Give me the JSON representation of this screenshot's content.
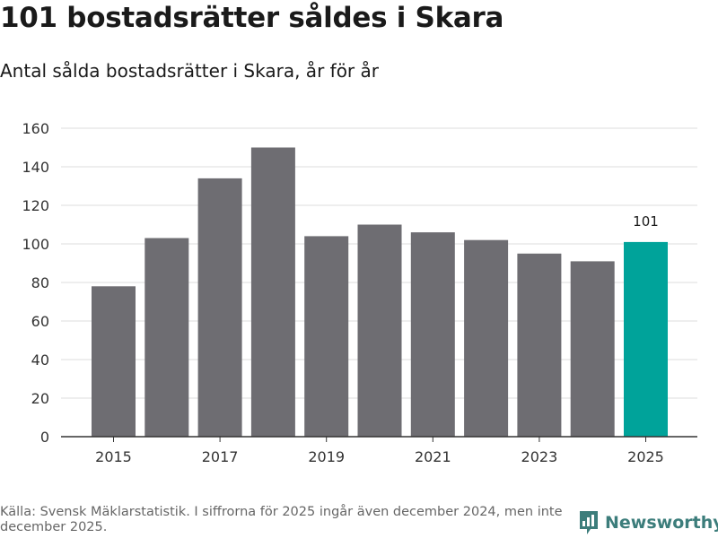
{
  "header": {
    "title": "101 bostadsrätter såldes i Skara",
    "subtitle": "Antal sålda bostadsrätter i Skara, år för år"
  },
  "chart_data": {
    "type": "bar",
    "title": "101 bostadsrätter såldes i Skara",
    "subtitle": "Antal sålda bostadsrätter i Skara, år för år",
    "xlabel": "",
    "ylabel": "",
    "categories": [
      "2015",
      "2016",
      "2017",
      "2018",
      "2019",
      "2020",
      "2021",
      "2022",
      "2023",
      "2024",
      "2025"
    ],
    "x_tick_labels": [
      "2015",
      "2017",
      "2019",
      "2021",
      "2023",
      "2025"
    ],
    "values": [
      78,
      103,
      134,
      150,
      104,
      110,
      106,
      102,
      95,
      91,
      101
    ],
    "ylim": [
      0,
      160
    ],
    "y_ticks": [
      0,
      20,
      40,
      60,
      80,
      100,
      120,
      140,
      160
    ],
    "grid": true,
    "highlight_index": 10,
    "data_labels": [
      {
        "index": 10,
        "text": "101"
      }
    ],
    "colors": {
      "bar": "#6e6d72",
      "highlight": "#00a39a",
      "grid": "#dddddd",
      "axis": "#333333"
    }
  },
  "footer": {
    "source": "Källa: Svensk Mäklarstatistik. I siffrorna för 2025 ingår även december 2024, men inte december 2025.",
    "brand": "Newsworthy",
    "brand_icon": "newsworthy-logo-icon",
    "brand_color": "#3c7d7b"
  }
}
